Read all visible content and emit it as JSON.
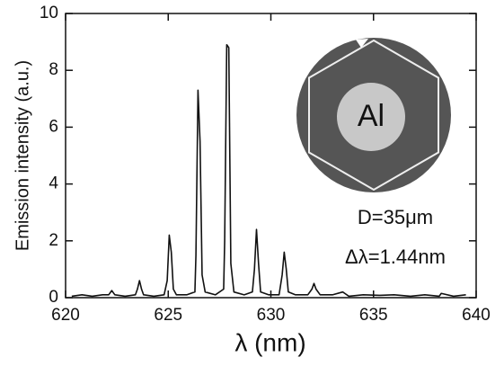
{
  "chart_data": {
    "type": "line",
    "x_label": "λ (nm)",
    "y_label": "Emission intensity (a.u.)",
    "annotations": [
      "Al",
      "D=35μm",
      "Δλ=1.44nm"
    ],
    "xlim": [
      620,
      640
    ],
    "xticks": [
      620,
      625,
      630,
      635,
      640
    ],
    "ylim": [
      0,
      10
    ],
    "yticks": [
      0,
      2,
      4,
      6,
      8,
      10
    ],
    "color": "#111111",
    "x": [
      620.3,
      620.8,
      621.3,
      621.8,
      622.1,
      622.25,
      622.4,
      622.9,
      623.4,
      623.5,
      623.6,
      623.7,
      623.8,
      624.3,
      624.8,
      624.95,
      625.05,
      625.15,
      625.25,
      625.4,
      625.9,
      626.3,
      626.35,
      626.45,
      626.55,
      626.65,
      626.8,
      627.3,
      627.7,
      627.75,
      627.85,
      627.95,
      628.05,
      628.2,
      628.7,
      629.1,
      629.2,
      629.3,
      629.4,
      629.5,
      629.9,
      630.4,
      630.55,
      630.65,
      630.75,
      630.85,
      631.2,
      631.8,
      632.0,
      632.1,
      632.2,
      632.4,
      633.0,
      633.5,
      633.6,
      633.8,
      634.5,
      635.3,
      636.0,
      636.8,
      637.5,
      638.2,
      638.3,
      638.9,
      639.5
    ],
    "values": [
      0.05,
      0.1,
      0.05,
      0.1,
      0.1,
      0.25,
      0.1,
      0.05,
      0.1,
      0.3,
      0.6,
      0.3,
      0.1,
      0.05,
      0.1,
      0.6,
      2.2,
      1.6,
      0.3,
      0.1,
      0.1,
      0.2,
      1.5,
      7.3,
      5.5,
      0.8,
      0.2,
      0.1,
      0.3,
      2.0,
      8.9,
      8.8,
      1.2,
      0.2,
      0.1,
      0.2,
      1.0,
      2.4,
      1.2,
      0.2,
      0.1,
      0.1,
      0.8,
      1.6,
      1.0,
      0.2,
      0.1,
      0.1,
      0.3,
      0.5,
      0.3,
      0.1,
      0.1,
      0.2,
      0.15,
      0.05,
      0.1,
      0.08,
      0.1,
      0.05,
      0.1,
      0.05,
      0.15,
      0.05,
      0.1
    ]
  }
}
